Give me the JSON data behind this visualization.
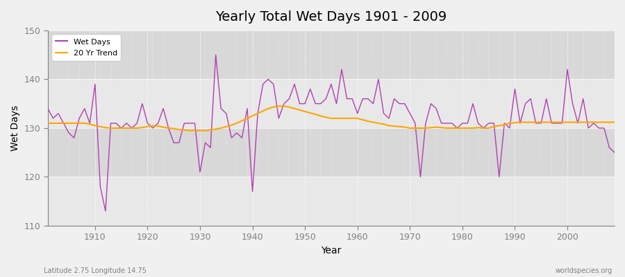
{
  "title": "Yearly Total Wet Days 1901 - 2009",
  "xlabel": "Year",
  "ylabel": "Wet Days",
  "xlim": [
    1901,
    2009
  ],
  "ylim": [
    110,
    150
  ],
  "yticks": [
    110,
    120,
    130,
    140,
    150
  ],
  "xticks": [
    1910,
    1920,
    1930,
    1940,
    1950,
    1960,
    1970,
    1980,
    1990,
    2000
  ],
  "wet_days_color": "#b040b0",
  "trend_color": "#ffa500",
  "background_color": "#f0f0f0",
  "plot_bg_color": "#e8e8e8",
  "band_light": "#e8e8e8",
  "band_dark": "#d8d8d8",
  "footnote_left": "Latitude 2.75 Longitude 14.75",
  "footnote_right": "worldspecies.org",
  "legend_labels": [
    "Wet Days",
    "20 Yr Trend"
  ],
  "years": [
    1901,
    1902,
    1903,
    1904,
    1905,
    1906,
    1907,
    1908,
    1909,
    1910,
    1911,
    1912,
    1913,
    1914,
    1915,
    1916,
    1917,
    1918,
    1919,
    1920,
    1921,
    1922,
    1923,
    1924,
    1925,
    1926,
    1927,
    1928,
    1929,
    1930,
    1931,
    1932,
    1933,
    1934,
    1935,
    1936,
    1937,
    1938,
    1939,
    1940,
    1941,
    1942,
    1943,
    1944,
    1945,
    1946,
    1947,
    1948,
    1949,
    1950,
    1951,
    1952,
    1953,
    1954,
    1955,
    1956,
    1957,
    1958,
    1959,
    1960,
    1961,
    1962,
    1963,
    1964,
    1965,
    1966,
    1967,
    1968,
    1969,
    1970,
    1971,
    1972,
    1973,
    1974,
    1975,
    1976,
    1977,
    1978,
    1979,
    1980,
    1981,
    1982,
    1983,
    1984,
    1985,
    1986,
    1987,
    1988,
    1989,
    1990,
    1991,
    1992,
    1993,
    1994,
    1995,
    1996,
    1997,
    1998,
    1999,
    2000,
    2001,
    2002,
    2003,
    2004,
    2005,
    2006,
    2007,
    2008,
    2009
  ],
  "wet_days": [
    134,
    132,
    133,
    131,
    129,
    128,
    132,
    134,
    131,
    139,
    118,
    113,
    131,
    131,
    130,
    131,
    130,
    131,
    135,
    131,
    130,
    131,
    134,
    130,
    127,
    127,
    131,
    131,
    131,
    121,
    127,
    126,
    145,
    134,
    133,
    128,
    129,
    128,
    134,
    117,
    133,
    139,
    140,
    139,
    132,
    135,
    136,
    139,
    135,
    135,
    138,
    135,
    135,
    136,
    139,
    135,
    142,
    136,
    136,
    133,
    136,
    136,
    135,
    140,
    133,
    132,
    136,
    135,
    135,
    133,
    131,
    120,
    131,
    135,
    134,
    131,
    131,
    131,
    130,
    131,
    131,
    135,
    131,
    130,
    131,
    131,
    120,
    131,
    130,
    138,
    131,
    135,
    136,
    131,
    131,
    136,
    131,
    131,
    131,
    142,
    135,
    131,
    136,
    130,
    131,
    130,
    130,
    126,
    125
  ],
  "trend": [
    131.0,
    131.0,
    131.0,
    131.0,
    131.0,
    131.0,
    131.0,
    131.0,
    130.8,
    130.5,
    130.3,
    130.1,
    130.0,
    130.0,
    130.0,
    130.0,
    130.0,
    130.0,
    130.1,
    130.3,
    130.5,
    130.4,
    130.2,
    130.0,
    129.9,
    129.7,
    129.6,
    129.5,
    129.5,
    129.5,
    129.5,
    129.6,
    129.8,
    130.0,
    130.3,
    130.6,
    131.0,
    131.5,
    132.0,
    132.5,
    133.0,
    133.5,
    134.0,
    134.3,
    134.5,
    134.5,
    134.3,
    134.0,
    133.7,
    133.4,
    133.1,
    132.8,
    132.5,
    132.2,
    132.0,
    132.0,
    132.0,
    132.0,
    132.0,
    132.0,
    131.7,
    131.4,
    131.2,
    131.0,
    130.8,
    130.5,
    130.4,
    130.3,
    130.2,
    130.0,
    130.0,
    130.0,
    130.0,
    130.1,
    130.2,
    130.1,
    130.0,
    130.0,
    130.0,
    130.0,
    130.0,
    130.0,
    130.1,
    130.0,
    130.0,
    130.3,
    130.5,
    130.7,
    131.0,
    131.1,
    131.2,
    131.2,
    131.2,
    131.2,
    131.2,
    131.2,
    131.2,
    131.2,
    131.2,
    131.2,
    131.2,
    131.2,
    131.2,
    131.2,
    131.2,
    131.2,
    131.2,
    131.2,
    131.2
  ]
}
